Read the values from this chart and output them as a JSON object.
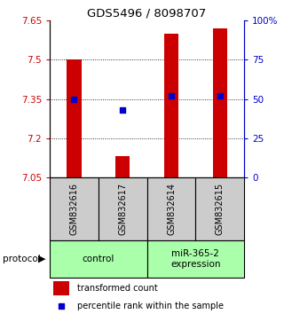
{
  "title": "GDS5496 / 8098707",
  "samples": [
    "GSM832616",
    "GSM832617",
    "GSM832614",
    "GSM832615"
  ],
  "bar_values": [
    7.5,
    7.13,
    7.6,
    7.62
  ],
  "percentile_values": [
    50,
    43,
    52,
    52
  ],
  "y_min": 7.05,
  "y_max": 7.65,
  "y_ticks": [
    7.05,
    7.2,
    7.35,
    7.5,
    7.65
  ],
  "y_right_ticks": [
    0,
    25,
    50,
    75,
    100
  ],
  "y_right_labels": [
    "0",
    "25",
    "50",
    "75",
    "100%"
  ],
  "bar_color": "#cc0000",
  "percentile_color": "#0000cc",
  "bar_width": 0.3,
  "groups": [
    {
      "label": "control",
      "samples": [
        0,
        1
      ],
      "color": "#aaffaa"
    },
    {
      "label": "miR-365-2\nexpression",
      "samples": [
        2,
        3
      ],
      "color": "#aaffaa"
    }
  ],
  "protocol_label": "protocol",
  "legend_bar_label": "transformed count",
  "legend_pct_label": "percentile rank within the sample",
  "left_tick_color": "#cc0000",
  "right_tick_color": "#0000cc",
  "sample_label_bg": "#cccccc",
  "grid_lines": [
    7.2,
    7.35,
    7.5
  ]
}
